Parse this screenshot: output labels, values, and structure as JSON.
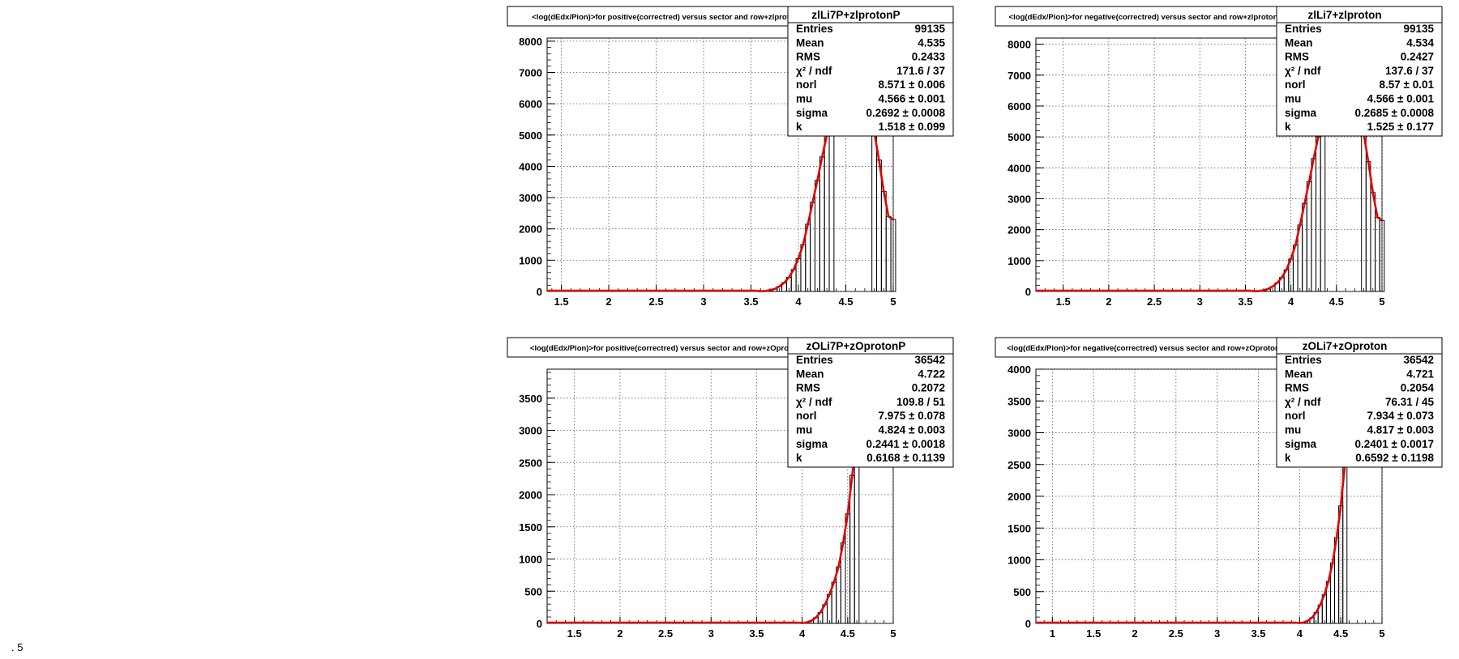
{
  "chart_data": [
    {
      "type": "bar",
      "title": "<log(dEdx/Pion)>for positive(correctred) versus sector and row+zlprotonP",
      "hist_name": "zlLi7P+zlprotonP",
      "xlim": [
        1.35,
        5.0
      ],
      "ylim": [
        0,
        8100
      ],
      "xticks": [
        1.5,
        2,
        2.5,
        3,
        3.5,
        4,
        4.5,
        5
      ],
      "yticks": [
        0,
        1000,
        2000,
        3000,
        4000,
        5000,
        6000,
        7000,
        8000
      ],
      "grid": true,
      "stats": [
        {
          "label": "Entries",
          "value": "99135"
        },
        {
          "label": "Mean",
          "value": "4.535"
        },
        {
          "label": "RMS",
          "value": "0.2433"
        },
        {
          "label": "χ² / ndf",
          "value": "171.6 / 37"
        },
        {
          "label": "norl",
          "value": "8.571 ± 0.006"
        },
        {
          "label": "mu",
          "value": "4.566 ± 0.001"
        },
        {
          "label": "sigma",
          "value": "0.2692 ± 0.0008"
        },
        {
          "label": "k",
          "value": "1.518 ± 0.099"
        }
      ],
      "x": [
        3.6,
        3.65,
        3.7,
        3.75,
        3.8,
        3.85,
        3.9,
        3.95,
        4.0,
        4.05,
        4.1,
        4.15,
        4.2,
        4.25,
        4.3,
        4.35,
        4.8,
        4.85,
        4.9,
        4.95,
        5.0
      ],
      "values": [
        5,
        15,
        40,
        80,
        160,
        280,
        450,
        700,
        1050,
        1500,
        2150,
        2850,
        3550,
        4300,
        5000,
        5600,
        5100,
        4200,
        3200,
        2400,
        2300
      ]
    },
    {
      "type": "bar",
      "title": "<log(dEdx/Pion)>for negative(correctred) versus sector and row+zlproton",
      "hist_name": "zlLi7+zlproton",
      "xlim": [
        1.2,
        5.0
      ],
      "ylim": [
        0,
        8200
      ],
      "xticks": [
        1.5,
        2,
        2.5,
        3,
        3.5,
        4,
        4.5,
        5
      ],
      "yticks": [
        0,
        1000,
        2000,
        3000,
        4000,
        5000,
        6000,
        7000,
        8000
      ],
      "grid": true,
      "stats": [
        {
          "label": "Entries",
          "value": "99135"
        },
        {
          "label": "Mean",
          "value": "4.534"
        },
        {
          "label": "RMS",
          "value": "0.2427"
        },
        {
          "label": "χ² / ndf",
          "value": "137.6 / 37"
        },
        {
          "label": "norl",
          "value": "8.57 ± 0.01"
        },
        {
          "label": "mu",
          "value": "4.566 ± 0.001"
        },
        {
          "label": "sigma",
          "value": "0.2685 ± 0.0008"
        },
        {
          "label": "k",
          "value": "1.525 ± 0.177"
        }
      ],
      "x": [
        3.6,
        3.65,
        3.7,
        3.75,
        3.8,
        3.85,
        3.9,
        3.95,
        4.0,
        4.05,
        4.1,
        4.15,
        4.2,
        4.25,
        4.3,
        4.35,
        4.8,
        4.85,
        4.9,
        4.95,
        5.0
      ],
      "values": [
        5,
        15,
        40,
        80,
        160,
        280,
        450,
        700,
        1050,
        1500,
        2150,
        2850,
        3550,
        4300,
        5000,
        5600,
        5100,
        4200,
        3200,
        2400,
        2300
      ]
    },
    {
      "type": "bar",
      "title": "<log(dEdx/Pion)>for positive(correctred) versus sector and row+zOprotonP",
      "hist_name": "zOLi7P+zOprotonP",
      "xlim": [
        1.2,
        5.0
      ],
      "ylim": [
        0,
        3950
      ],
      "xticks": [
        1.5,
        2,
        2.5,
        3,
        3.5,
        4,
        4.5,
        5
      ],
      "yticks": [
        0,
        500,
        1000,
        1500,
        2000,
        2500,
        3000,
        3500
      ],
      "grid": true,
      "stats": [
        {
          "label": "Entries",
          "value": "36542"
        },
        {
          "label": "Mean",
          "value": "4.722"
        },
        {
          "label": "RMS",
          "value": "0.2072"
        },
        {
          "label": "χ² / ndf",
          "value": "109.8 / 51"
        },
        {
          "label": "norl",
          "value": "7.975 ± 0.078"
        },
        {
          "label": "mu",
          "value": "4.824 ± 0.003"
        },
        {
          "label": "sigma",
          "value": "0.2441 ± 0.0018"
        },
        {
          "label": "k",
          "value": "0.6168 ± 0.1139"
        }
      ],
      "x": [
        4.0,
        4.05,
        4.1,
        4.15,
        4.2,
        4.25,
        4.3,
        4.35,
        4.4,
        4.45,
        4.5,
        4.55,
        4.6
      ],
      "values": [
        5,
        15,
        40,
        90,
        170,
        290,
        450,
        640,
        880,
        1250,
        1700,
        2300,
        2950
      ]
    },
    {
      "type": "bar",
      "title": "<log(dEdx/Pion)>for negative(correctred) versus sector and row+zOproton",
      "hist_name": "zOLi7+zOproton",
      "xlim": [
        0.8,
        5.0
      ],
      "ylim": [
        0,
        4000
      ],
      "xticks": [
        1,
        1.5,
        2,
        2.5,
        3,
        3.5,
        4,
        4.5,
        5
      ],
      "yticks": [
        0,
        500,
        1000,
        1500,
        2000,
        2500,
        3000,
        3500,
        4000
      ],
      "grid": true,
      "stats": [
        {
          "label": "Entries",
          "value": "36542"
        },
        {
          "label": "Mean",
          "value": "4.721"
        },
        {
          "label": "RMS",
          "value": "0.2054"
        },
        {
          "label": "χ² / ndf",
          "value": "76.31 / 45"
        },
        {
          "label": "norl",
          "value": "7.934 ± 0.073"
        },
        {
          "label": "mu",
          "value": "4.817 ± 0.003"
        },
        {
          "label": "sigma",
          "value": "0.2401 ± 0.0017"
        },
        {
          "label": "k",
          "value": "0.6592 ± 0.1198"
        }
      ],
      "x": [
        4.0,
        4.05,
        4.1,
        4.15,
        4.2,
        4.25,
        4.3,
        4.35,
        4.4,
        4.45,
        4.5,
        4.55
      ],
      "values": [
        5,
        15,
        40,
        90,
        170,
        290,
        450,
        660,
        950,
        1350,
        1850,
        2500
      ]
    }
  ],
  "stray_mark": ". 5"
}
